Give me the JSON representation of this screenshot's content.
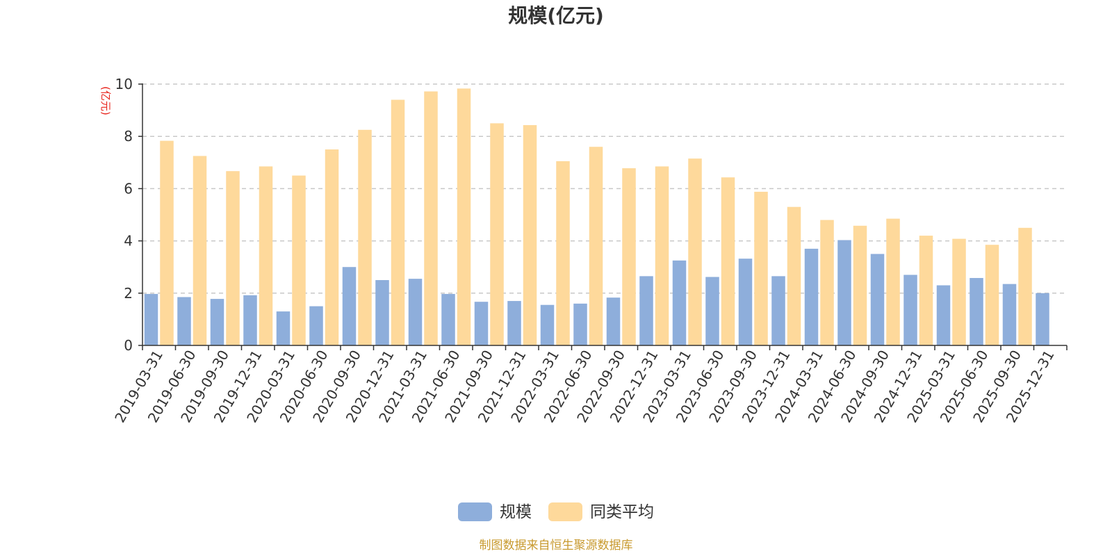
{
  "chart_data": {
    "type": "bar",
    "title": "规模(亿元)",
    "ylabel": "(亿元)",
    "ylim": [
      0,
      10
    ],
    "yticks": [
      0,
      2,
      4,
      6,
      8,
      10
    ],
    "grid": "horizontal-dashed",
    "legend_position": "bottom-center",
    "categories": [
      "2019-03-31",
      "2019-06-30",
      "2019-09-30",
      "2019-12-31",
      "2020-03-31",
      "2020-06-30",
      "2020-09-30",
      "2020-12-31",
      "2021-03-31",
      "2021-06-30",
      "2021-09-30",
      "2021-12-31",
      "2022-03-31",
      "2022-06-30",
      "2022-09-30",
      "2022-12-31",
      "2023-03-31",
      "2023-06-30",
      "2023-09-30",
      "2023-12-31",
      "2024-03-31",
      "2024-06-30",
      "2024-09-30",
      "2024-12-31",
      "2025-03-31",
      "2025-06-30",
      "2025-09-30",
      "2025-12-31"
    ],
    "series": [
      {
        "name": "规模",
        "color": "#8eaedb",
        "values": [
          1.97,
          1.85,
          1.78,
          1.92,
          1.3,
          1.5,
          3.0,
          2.5,
          2.55,
          1.97,
          1.67,
          1.7,
          1.55,
          1.6,
          1.83,
          2.65,
          3.25,
          2.62,
          3.32,
          2.65,
          3.7,
          4.03,
          3.5,
          2.7,
          2.3,
          2.58,
          2.35,
          2.0
        ]
      },
      {
        "name": "同类平均",
        "color": "#fed99b",
        "values": [
          7.83,
          7.25,
          6.67,
          6.85,
          6.5,
          7.5,
          8.25,
          9.4,
          9.72,
          9.83,
          8.5,
          8.43,
          7.05,
          7.6,
          6.78,
          6.85,
          7.15,
          6.43,
          5.88,
          5.3,
          4.8,
          4.58,
          4.85,
          4.2,
          4.08,
          3.85,
          4.5,
          null
        ]
      }
    ],
    "source_note": "制图数据来自恒生聚源数据库"
  }
}
